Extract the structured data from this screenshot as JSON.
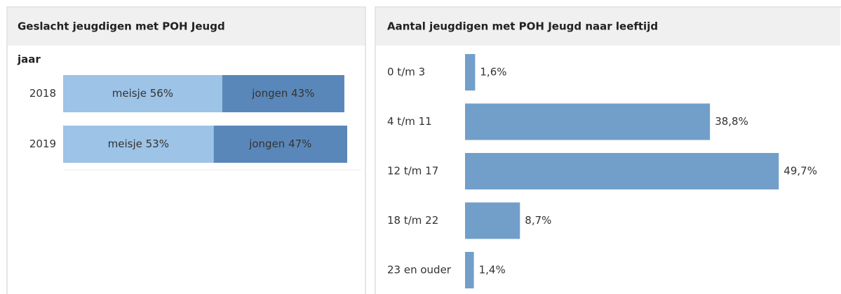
{
  "chart_data": [
    {
      "type": "stacked-bar-horizontal",
      "title": "Geslacht jeugdigen met POH Jeugd",
      "y_label": "jaar",
      "categories": [
        "2018",
        "2019"
      ],
      "series": [
        {
          "name": "meisje",
          "color": "#9dc3e6",
          "values": [
            56,
            53
          ],
          "value_labels": [
            "meisje 56%",
            "meisje 53%"
          ]
        },
        {
          "name": "jongen",
          "color": "#5a87b9",
          "values": [
            43,
            47
          ],
          "value_labels": [
            "jongen 43%",
            "jongen 47%"
          ]
        }
      ],
      "xlim": [
        0,
        100
      ]
    },
    {
      "type": "bar-horizontal",
      "title": "Aantal jeugdigen met POH Jeugd naar leeftijd",
      "categories": [
        "0 t/m 3",
        "4 t/m 11",
        "12 t/m 17",
        "18 t/m 22",
        "23 en ouder"
      ],
      "values": [
        1.6,
        38.8,
        49.7,
        8.7,
        1.4
      ],
      "value_labels": [
        "1,6%",
        "38,8%",
        "49,7%",
        "8,7%",
        "1,4%"
      ],
      "color": "#729fca",
      "xlim": [
        0,
        58
      ]
    }
  ]
}
